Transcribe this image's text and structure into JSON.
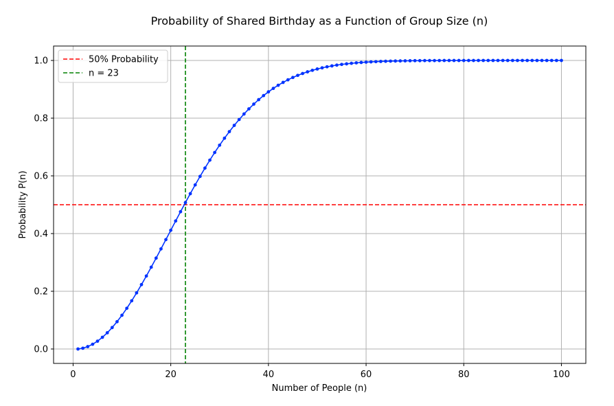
{
  "chart_data": {
    "type": "line",
    "title": "Probability of Shared Birthday as a Function of Group Size (n)",
    "xlabel": "Number of People (n)",
    "ylabel": "Probability P(n)",
    "xlim": [
      -4,
      105
    ],
    "ylim": [
      -0.05,
      1.05
    ],
    "xticks": [
      0,
      20,
      40,
      60,
      80,
      100
    ],
    "yticks": [
      0.0,
      0.2,
      0.4,
      0.6,
      0.8,
      1.0
    ],
    "xtick_labels": [
      "0",
      "20",
      "40",
      "60",
      "80",
      "100"
    ],
    "ytick_labels": [
      "0.0",
      "0.2",
      "0.4",
      "0.6",
      "0.8",
      "1.0"
    ],
    "grid": true,
    "legend_position": "top-left",
    "series": [
      {
        "color": "#0033ff",
        "marker": "circle",
        "x": [
          1,
          2,
          3,
          4,
          5,
          6,
          7,
          8,
          9,
          10,
          11,
          12,
          13,
          14,
          15,
          16,
          17,
          18,
          19,
          20,
          21,
          22,
          23,
          24,
          25,
          26,
          27,
          28,
          29,
          30,
          31,
          32,
          33,
          34,
          35,
          36,
          37,
          38,
          39,
          40,
          41,
          42,
          43,
          44,
          45,
          46,
          47,
          48,
          49,
          50,
          51,
          52,
          53,
          54,
          55,
          56,
          57,
          58,
          59,
          60,
          61,
          62,
          63,
          64,
          65,
          66,
          67,
          68,
          69,
          70,
          71,
          72,
          73,
          74,
          75,
          76,
          77,
          78,
          79,
          80,
          81,
          82,
          83,
          84,
          85,
          86,
          87,
          88,
          89,
          90,
          91,
          92,
          93,
          94,
          95,
          96,
          97,
          98,
          99,
          100
        ],
        "y": [
          0.0,
          0.0027,
          0.0082,
          0.0164,
          0.0271,
          0.0405,
          0.0562,
          0.0743,
          0.0946,
          0.1169,
          0.1411,
          0.167,
          0.1944,
          0.2231,
          0.2529,
          0.2836,
          0.315,
          0.3469,
          0.3791,
          0.4114,
          0.4437,
          0.4757,
          0.5073,
          0.5383,
          0.5687,
          0.5982,
          0.6269,
          0.6545,
          0.681,
          0.7063,
          0.7305,
          0.7533,
          0.775,
          0.7953,
          0.8144,
          0.8322,
          0.8487,
          0.8641,
          0.8782,
          0.8912,
          0.9032,
          0.914,
          0.9239,
          0.9329,
          0.941,
          0.9483,
          0.9548,
          0.9606,
          0.9658,
          0.9704,
          0.9744,
          0.978,
          0.9811,
          0.9839,
          0.9863,
          0.9883,
          0.9901,
          0.9917,
          0.993,
          0.9941,
          0.9951,
          0.9959,
          0.9966,
          0.9972,
          0.9977,
          0.9981,
          0.9984,
          0.9987,
          0.999,
          0.9992,
          0.9993,
          0.9995,
          0.9996,
          0.9996,
          0.9997,
          0.9998,
          0.9998,
          0.9999,
          0.9999,
          0.9999,
          0.9999,
          0.9999,
          1.0,
          1.0,
          1.0,
          1.0,
          1.0,
          1.0,
          1.0,
          1.0,
          1.0,
          1.0,
          1.0,
          1.0,
          1.0,
          1.0,
          1.0,
          1.0,
          1.0,
          1.0
        ]
      }
    ],
    "reference_lines": [
      {
        "orientation": "horizontal",
        "value": 0.5,
        "color": "#ff0000",
        "style": "dashed",
        "label": "50% Probability"
      },
      {
        "orientation": "vertical",
        "value": 23,
        "color": "#008000",
        "style": "dashed",
        "label": "n = 23"
      }
    ],
    "legend": {
      "entries": [
        "50% Probability",
        "n = 23"
      ]
    }
  }
}
